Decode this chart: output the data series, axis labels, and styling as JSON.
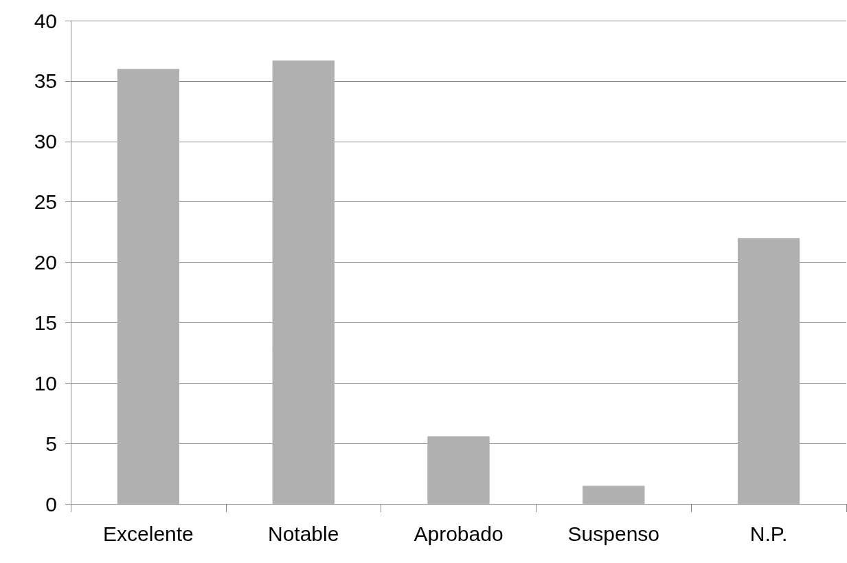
{
  "chart_data": {
    "type": "bar",
    "categories": [
      "Excelente",
      "Notable",
      "Aprobado",
      "Suspenso",
      "N.P."
    ],
    "values": [
      36,
      36.7,
      5.6,
      1.5,
      22
    ],
    "color": "#b0b0b0",
    "ylim": [
      0,
      40
    ],
    "yticks": [
      0,
      5,
      10,
      15,
      20,
      25,
      30,
      35,
      40
    ],
    "grid": "y"
  }
}
